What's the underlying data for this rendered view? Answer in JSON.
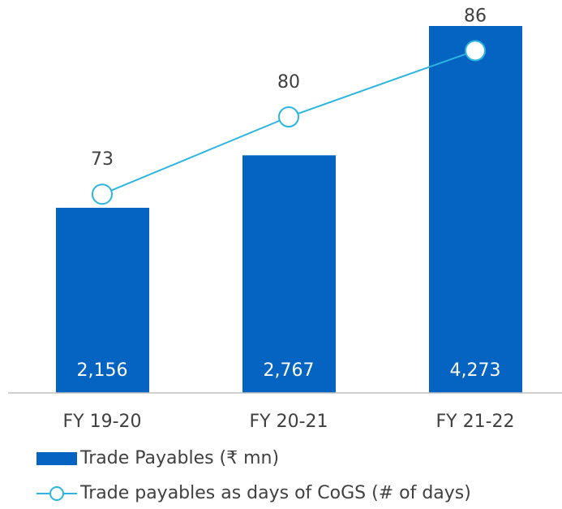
{
  "chart_data": {
    "type": "bar_line",
    "categories": [
      "FY 19-20",
      "FY 20-21",
      "FY 21-22"
    ],
    "series": [
      {
        "name": "Trade Payables (₹ mn)",
        "type": "bar",
        "color": "#0563c1",
        "values": [
          2156,
          2767,
          4273
        ],
        "value_labels": [
          "2,156",
          "2,767",
          "4,273"
        ]
      },
      {
        "name": "Trade payables as days of CoGS (# of days)",
        "type": "line",
        "axis": "y2",
        "color": "#2bb5e0",
        "values": [
          73,
          80,
          86
        ]
      }
    ],
    "ylim": [
      0,
      4500
    ],
    "y2lim": [
      55,
      90
    ]
  }
}
